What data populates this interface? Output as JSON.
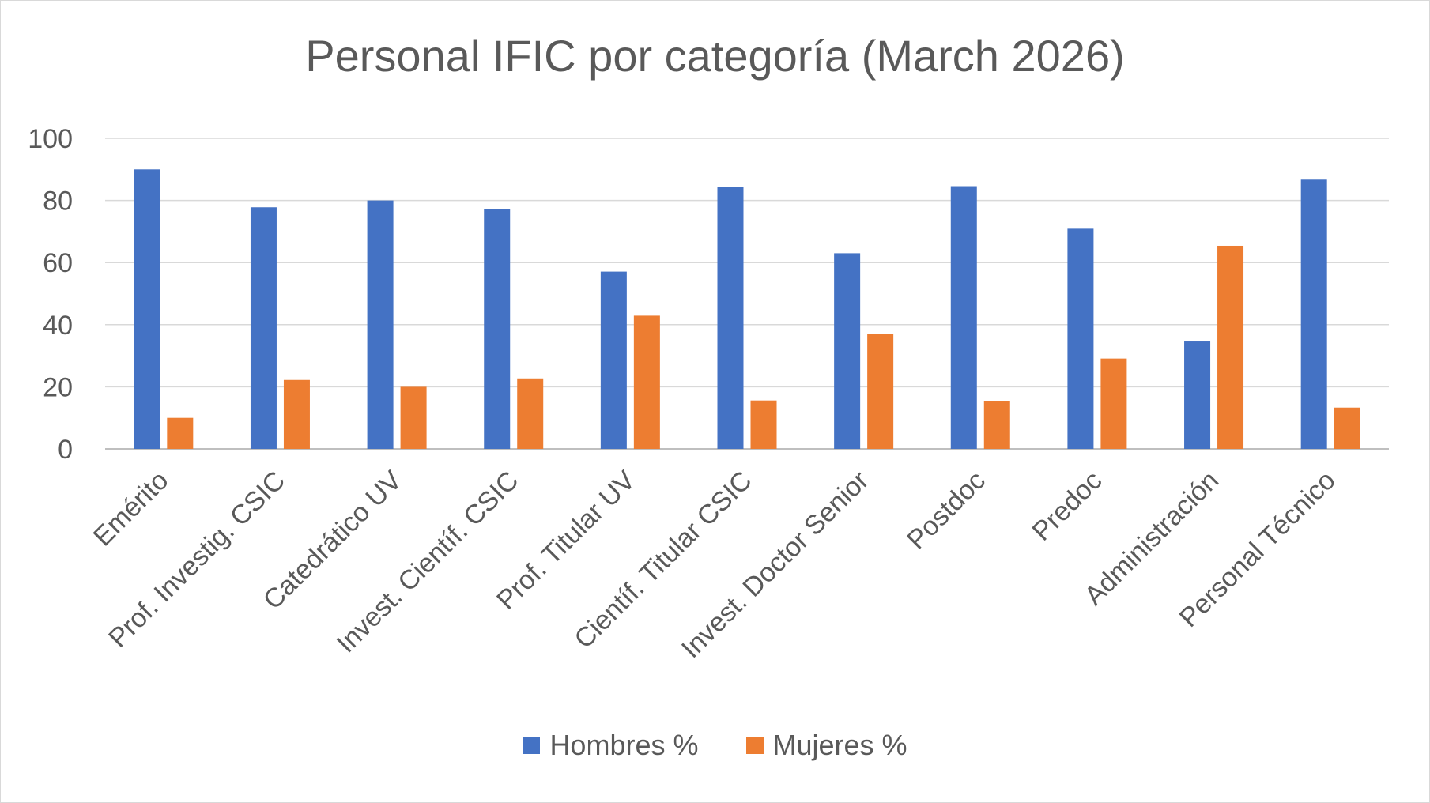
{
  "chart_data": {
    "type": "bar",
    "title": "Personal IFIC por categoría (March 2026)",
    "xlabel": "",
    "ylabel": "",
    "ylim": [
      0,
      100
    ],
    "yticks": [
      0,
      20,
      40,
      60,
      80,
      100
    ],
    "grid": true,
    "legend_position": "bottom",
    "categories": [
      "Emérito",
      "Prof. Investig. CSIC",
      "Catedrático UV",
      "Invest. Científ. CSIC",
      "Prof. Titular UV",
      "Científ. Titular CSIC",
      "Invest. Doctor Senior",
      "Postdoc",
      "Predoc",
      "Administración",
      "Personal Técnico"
    ],
    "series": [
      {
        "name": "Hombres %",
        "color": "#4472c4",
        "values": [
          90,
          77.8,
          80,
          77.3,
          57.1,
          84.4,
          63,
          84.6,
          70.9,
          34.6,
          86.7
        ]
      },
      {
        "name": "Mujeres %",
        "color": "#ed7d31",
        "values": [
          10,
          22.2,
          20,
          22.7,
          42.9,
          15.6,
          37,
          15.4,
          29.1,
          65.4,
          13.3
        ]
      }
    ]
  }
}
